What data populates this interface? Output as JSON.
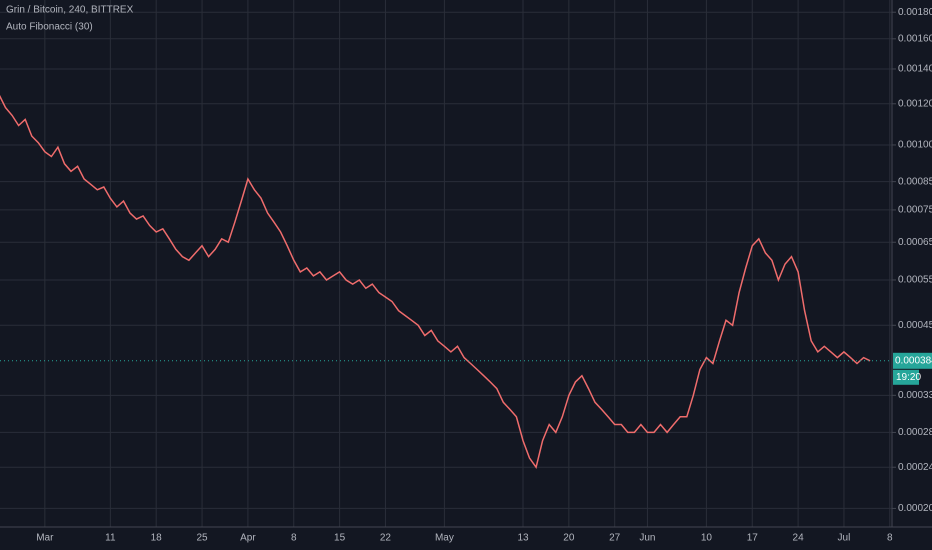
{
  "chart_data": {
    "type": "line",
    "title": "Grin / Bitcoin, 240, BITTREX",
    "subtitle": "Auto Fibonacci (30)",
    "categories": [
      null,
      null,
      null,
      null,
      null,
      null,
      null,
      "Mar",
      null,
      null,
      null,
      null,
      null,
      null,
      null,
      null,
      null,
      "11",
      null,
      null,
      null,
      null,
      null,
      null,
      "18",
      null,
      null,
      null,
      null,
      null,
      null,
      "25",
      null,
      null,
      null,
      null,
      null,
      null,
      "Apr",
      null,
      null,
      null,
      null,
      null,
      null,
      "8",
      null,
      null,
      null,
      null,
      null,
      null,
      "15",
      null,
      null,
      null,
      null,
      null,
      null,
      "22",
      null,
      null,
      null,
      null,
      null,
      null,
      null,
      null,
      "May",
      null,
      null,
      null,
      null,
      null,
      null,
      null,
      null,
      null,
      null,
      null,
      "13",
      null,
      null,
      null,
      null,
      null,
      null,
      "20",
      null,
      null,
      null,
      null,
      null,
      null,
      "27",
      null,
      null,
      null,
      null,
      "Jun",
      null,
      null,
      null,
      null,
      null,
      null,
      null,
      null,
      "10",
      null,
      null,
      null,
      null,
      null,
      null,
      "17",
      null,
      null,
      null,
      null,
      null,
      null,
      "24",
      null,
      null,
      null,
      null,
      null,
      null,
      "Jul",
      null,
      null,
      null,
      null,
      null,
      null,
      "8"
    ],
    "values": [
      0.00125,
      0.00118,
      0.00114,
      0.00109,
      0.00112,
      0.00104,
      0.00101,
      0.00097,
      0.00095,
      0.00099,
      0.00092,
      0.00089,
      0.00091,
      0.00086,
      0.00084,
      0.00082,
      0.00083,
      0.00079,
      0.00076,
      0.00078,
      0.00074,
      0.00072,
      0.00073,
      0.0007,
      0.00068,
      0.00069,
      0.00066,
      0.00063,
      0.00061,
      0.0006,
      0.00062,
      0.00064,
      0.00061,
      0.00063,
      0.00066,
      0.00065,
      0.00071,
      0.00078,
      0.00086,
      0.00082,
      0.00079,
      0.00074,
      0.00071,
      0.00068,
      0.00064,
      0.0006,
      0.00057,
      0.00058,
      0.00056,
      0.00057,
      0.00055,
      0.00056,
      0.00057,
      0.00055,
      0.00054,
      0.00055,
      0.00053,
      0.00054,
      0.00052,
      0.00051,
      0.0005,
      0.00048,
      0.00047,
      0.00046,
      0.00045,
      0.00043,
      0.00044,
      0.00042,
      0.00041,
      0.0004,
      0.00041,
      0.00039,
      0.00038,
      0.00037,
      0.00036,
      0.00035,
      0.00034,
      0.00032,
      0.00031,
      0.0003,
      0.00027,
      0.00025,
      0.00024,
      0.00027,
      0.00029,
      0.00028,
      0.0003,
      0.00033,
      0.00035,
      0.00036,
      0.00034,
      0.00032,
      0.00031,
      0.0003,
      0.00029,
      0.00029,
      0.00028,
      0.00028,
      0.00029,
      0.00028,
      0.00028,
      0.00029,
      0.00028,
      0.00029,
      0.0003,
      0.0003,
      0.00033,
      0.00037,
      0.00039,
      0.00038,
      0.00042,
      0.00046,
      0.00045,
      0.00052,
      0.00058,
      0.00064,
      0.00066,
      0.00062,
      0.0006,
      0.00055,
      0.00059,
      0.00061,
      0.00057,
      0.00048,
      0.00042,
      0.0004,
      0.00041,
      0.0004,
      0.00039,
      0.0004,
      0.00039,
      0.00038,
      0.00039,
      0.00038452,
      null,
      null,
      null
    ],
    "color": "#ef6c6c",
    "log_scale": true,
    "grid": true,
    "ylim": [
      0.00019,
      0.0019
    ],
    "yticks": [
      {
        "value": 0.0002,
        "label": "0.00020000"
      },
      {
        "value": 0.00024,
        "label": "0.00024000"
      },
      {
        "value": 0.00028,
        "label": "0.00028000"
      },
      {
        "value": 0.00033,
        "label": "0.00033000"
      },
      {
        "value": 0.00045,
        "label": "0.00045000"
      },
      {
        "value": 0.00055,
        "label": "0.00055000"
      },
      {
        "value": 0.00065,
        "label": "0.00065000"
      },
      {
        "value": 0.00075,
        "label": "0.00075000"
      },
      {
        "value": 0.00085,
        "label": "0.00085000"
      },
      {
        "value": 0.001,
        "label": "0.00100000"
      },
      {
        "value": 0.0012,
        "label": "0.00120000"
      },
      {
        "value": 0.0014,
        "label": "0.00140000"
      },
      {
        "value": 0.0016,
        "label": "0.00160000"
      },
      {
        "value": 0.0018,
        "label": "0.00180000"
      }
    ],
    "price_tag": {
      "value": 0.00038452,
      "label": "0.00038452",
      "color": "#26a69a"
    },
    "countdown": "19:20"
  }
}
